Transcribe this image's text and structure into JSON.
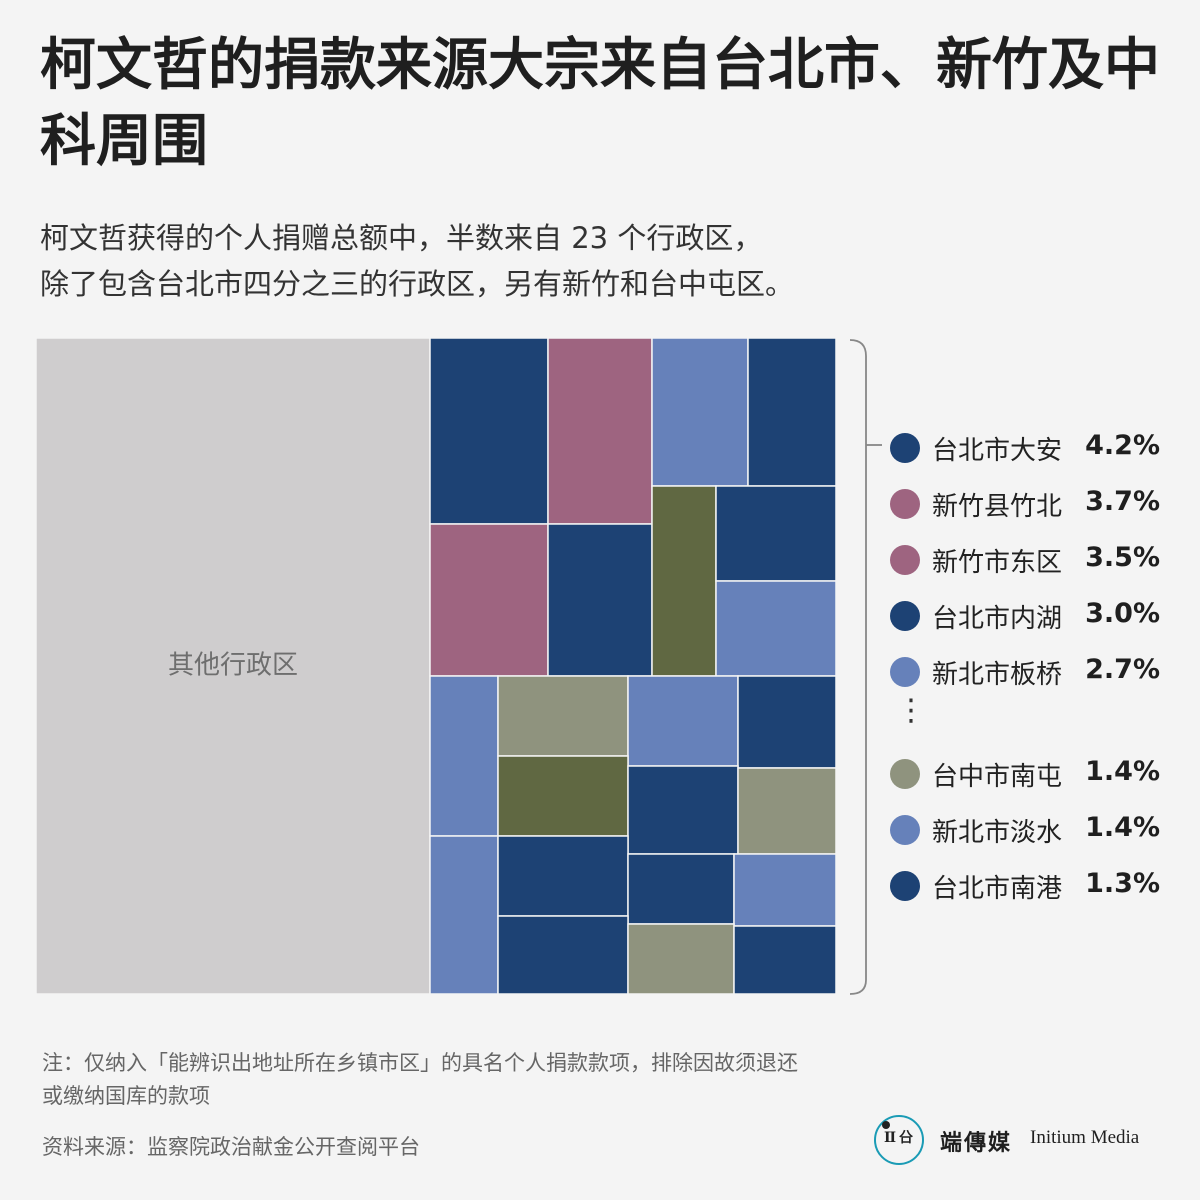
{
  "title": "柯文哲的捐款来源大宗来自台北市、新竹及中科周围",
  "subtitle_line1": "柯文哲获得的个人捐赠总额中，半数来自 23 个行政区，",
  "subtitle_line2": "除了包含台北市四分之三的行政区，另有新竹和台中屯区。",
  "colors": {
    "other": "#cfcdce",
    "taipei": "#1d4274",
    "hsinchu": "#9e6480",
    "new_taipei": "#6681ba",
    "taichung_dark": "#606842",
    "taichung_light": "#8f937e",
    "background": "#f4f4f4"
  },
  "chart_data": {
    "type": "treemap",
    "other_label": "其他行政区",
    "legend": [
      {
        "name": "台北市大安",
        "value": "4.2%",
        "color": "#1d4274"
      },
      {
        "name": "新竹县竹北",
        "value": "3.7%",
        "color": "#9e6480"
      },
      {
        "name": "新竹市东区",
        "value": "3.5%",
        "color": "#9e6480"
      },
      {
        "name": "台北市内湖",
        "value": "3.0%",
        "color": "#1d4274"
      },
      {
        "name": "新北市板桥",
        "value": "2.7%",
        "color": "#6681ba"
      },
      {
        "name": "台中市南屯",
        "value": "1.4%",
        "color": "#8f937e"
      },
      {
        "name": "新北市淡水",
        "value": "1.4%",
        "color": "#6681ba"
      },
      {
        "name": "台北市南港",
        "value": "1.3%",
        "color": "#1d4274"
      }
    ],
    "legend_ellipsis": "⋮"
  },
  "note_line1": "注：仅纳入「能辨识出地址所在乡镇市区」的具名个人捐款款项，排除因故须退还",
  "note_line2": "或缴纳国库的款项",
  "source": "资料来源：监察院政治献金公开查阅平台",
  "brand": {
    "logo_glyph": "II 㕣",
    "cn": "端傳媒",
    "en": "Initium Media"
  }
}
